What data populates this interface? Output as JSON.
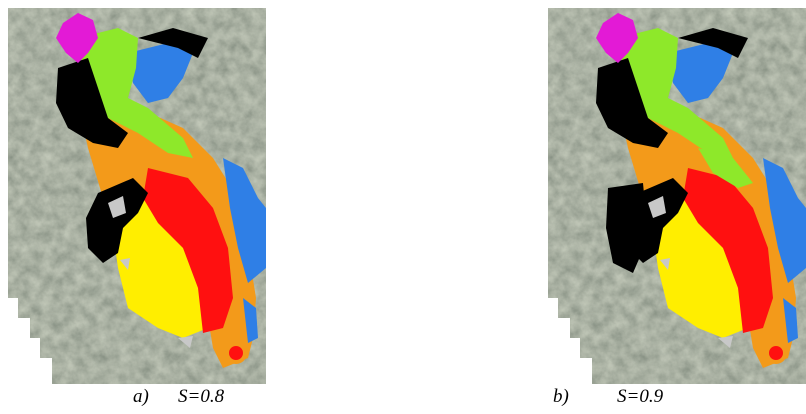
{
  "panels": [
    {
      "label": "a)",
      "caption": "S=0.8"
    },
    {
      "label": "b)",
      "caption": "S=0.9"
    }
  ]
}
